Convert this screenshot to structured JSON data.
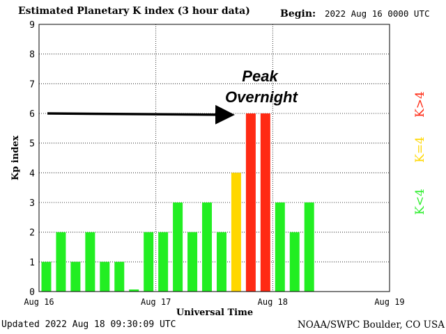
{
  "header": {
    "title": "Estimated Planetary K index (3 hour data)",
    "begin_label": "Begin:",
    "begin_value": "2022 Aug 16 0000 UTC"
  },
  "footer": {
    "updated": "Updated 2022 Aug 18 09:30:09 UTC",
    "credit": "NOAA/SWPC Boulder, CO USA"
  },
  "chart_data": {
    "type": "bar",
    "title": "Estimated Planetary K index (3 hour data)",
    "xlabel": "Universal Time",
    "ylabel": "Kp index",
    "ylim": [
      0,
      9
    ],
    "y_ticks": [
      "0",
      "1",
      "2",
      "3",
      "4",
      "5",
      "6",
      "7",
      "8",
      "9"
    ],
    "x_tick_labels": [
      "Aug 16",
      "Aug 17",
      "Aug 18",
      "Aug 19"
    ],
    "bin_hours": 3,
    "total_bins": 24,
    "grid": true,
    "values": [
      1,
      2,
      1,
      2,
      1,
      1,
      0.07,
      2,
      2,
      3,
      2,
      3,
      2,
      4,
      6,
      6,
      3,
      2,
      3
    ],
    "legend": {
      "placement": "right",
      "items": [
        {
          "label": "K>4",
          "color": "#ff2a14"
        },
        {
          "label": "K=4",
          "color": "#ffd700"
        },
        {
          "label": "K<4",
          "color": "#2eee2e"
        }
      ]
    },
    "colors": {
      "low": "#22ee22",
      "moderate": "#ffd700",
      "high": "#ff2a14"
    },
    "annotation": {
      "text_line1": "Peak",
      "text_line2": "Overnight"
    }
  }
}
